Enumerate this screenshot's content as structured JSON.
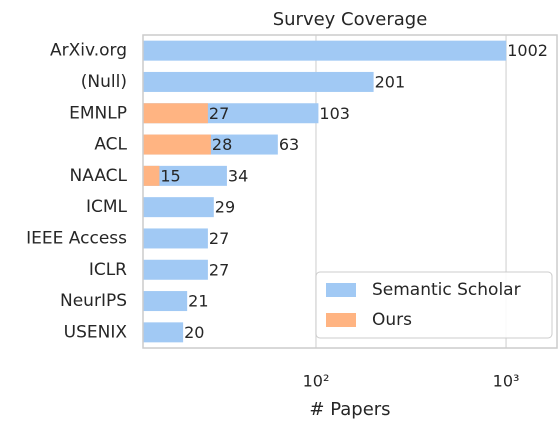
{
  "chart_data": {
    "type": "barh",
    "title": "Survey Coverage",
    "xlabel": "# Papers",
    "categories": [
      "ArXiv.org",
      "(Null)",
      "EMNLP",
      "ACL",
      "NAACL",
      "ICML",
      "IEEE Access",
      "ICLR",
      "NeurIPS",
      "USENIX"
    ],
    "series": [
      {
        "name": "Semantic Scholar",
        "color": "#a1c9f4",
        "values": [
          1002,
          201,
          103,
          63,
          34,
          29,
          27,
          27,
          21,
          20
        ]
      },
      {
        "name": "Ours",
        "color": "#ffb482",
        "values": [
          null,
          null,
          27,
          28,
          15,
          null,
          null,
          null,
          null,
          null
        ]
      }
    ],
    "xscale": "log",
    "xlim": [
      12.3,
      1854
    ],
    "xticks": [
      {
        "value": 100,
        "label": "10²"
      },
      {
        "value": 1000,
        "label": "10³"
      }
    ],
    "grid": true,
    "legend": "lower right"
  }
}
